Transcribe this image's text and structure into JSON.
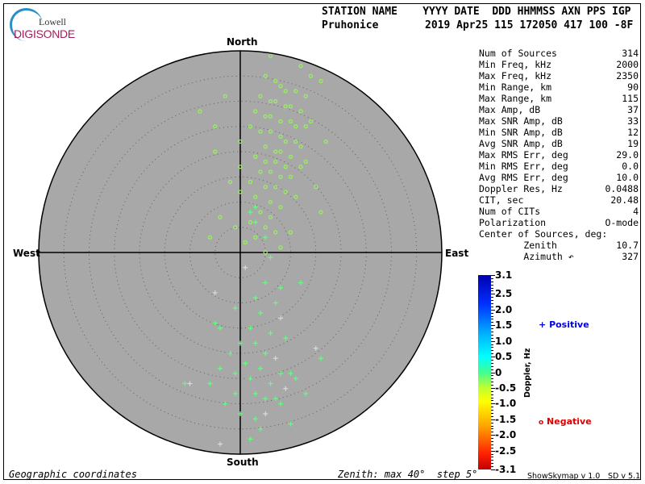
{
  "logo": {
    "line1": "Lowell",
    "line2": "DIGISONDE"
  },
  "header": {
    "labels": "STATION NAME    YYYY DATE  DDD HHMMSS AXN PPS IGP",
    "station": "Pruhonice",
    "values": "2019 Apr25 115 172050 417 100 -8F"
  },
  "directions": {
    "north": "North",
    "south": "South",
    "east": "East",
    "west": "West"
  },
  "stats": [
    {
      "label": "Num of Sources",
      "value": "314"
    },
    {
      "label": "Min Freq, kHz",
      "value": "2000"
    },
    {
      "label": "Max Freq, kHz",
      "value": "2350"
    },
    {
      "label": "Min Range, km",
      "value": "90"
    },
    {
      "label": "Max Range, km",
      "value": "115"
    },
    {
      "label": "Max Amp, dB",
      "value": "37"
    },
    {
      "label": "Max SNR Amp, dB",
      "value": "33"
    },
    {
      "label": "Min SNR Amp, dB",
      "value": "12"
    },
    {
      "label": "Avg SNR Amp, dB",
      "value": "19"
    },
    {
      "label": "Max RMS Err, deg",
      "value": "29.0"
    },
    {
      "label": "Min RMS Err, deg",
      "value": "0.0"
    },
    {
      "label": "Avg RMS Err, deg",
      "value": "10.0"
    },
    {
      "label": "Doppler Res, Hz",
      "value": "0.0488"
    },
    {
      "label": "CIT, sec",
      "value": "20.48"
    },
    {
      "label": "Num of CITs",
      "value": "4"
    },
    {
      "label": "Polarization",
      "value": "O-mode"
    },
    {
      "label": "Center of Sources, deg:",
      "value": ""
    },
    {
      "label": "        Zenith",
      "value": "10.7"
    },
    {
      "label": "        Azimuth ↶",
      "value": "327"
    }
  ],
  "footer": {
    "left": "Geographic coordinates",
    "right": "Zenith: max 40°  step 5°",
    "version1": "ShowSkymap v 1.0",
    "version2": "SD v 5.1"
  },
  "legend": {
    "positive_symbol": "+",
    "positive": "Positive",
    "negative_symbol": "o",
    "negative": "Negative",
    "positive_color": "#0000e0",
    "negative_color": "#e00000"
  },
  "chart_data": {
    "type": "scatter",
    "coordinates": "polar sky map, zenith angle radial, azimuth geographic",
    "zenith_max": 40,
    "zenith_step": 5,
    "colorbar": {
      "label": "Doppler, Hz",
      "range": [
        -3.1,
        3.1
      ],
      "ticks": [
        "3.1",
        "2.5",
        "2.0",
        "1.5",
        "1.0",
        "0.5",
        "0",
        "-0.5",
        "-1.0",
        "-1.5",
        "-2.0",
        "-2.5",
        "-3.1"
      ]
    },
    "point_units": "[east_deg, north_deg, doppler_Hz]",
    "negative_points": [
      [
        6,
        39
      ],
      [
        12,
        37
      ],
      [
        14,
        35
      ],
      [
        16,
        34
      ],
      [
        5,
        35
      ],
      [
        7,
        34
      ],
      [
        8,
        33
      ],
      [
        9,
        32
      ],
      [
        11,
        32
      ],
      [
        13,
        31
      ],
      [
        4,
        31
      ],
      [
        6,
        30
      ],
      [
        7,
        30
      ],
      [
        9,
        29
      ],
      [
        10,
        29
      ],
      [
        12,
        28
      ],
      [
        3,
        28
      ],
      [
        5,
        27
      ],
      [
        6,
        27
      ],
      [
        8,
        26
      ],
      [
        10,
        26
      ],
      [
        11,
        25
      ],
      [
        13,
        25
      ],
      [
        2,
        25
      ],
      [
        4,
        24
      ],
      [
        6,
        24
      ],
      [
        8,
        23
      ],
      [
        9,
        22
      ],
      [
        11,
        22
      ],
      [
        12,
        21
      ],
      [
        5,
        21
      ],
      [
        7,
        20
      ],
      [
        8,
        20
      ],
      [
        10,
        19
      ],
      [
        3,
        19
      ],
      [
        5,
        18
      ],
      [
        7,
        18
      ],
      [
        9,
        17
      ],
      [
        12,
        17
      ],
      [
        4,
        16
      ],
      [
        6,
        16
      ],
      [
        8,
        15
      ],
      [
        10,
        15
      ],
      [
        2,
        14
      ],
      [
        5,
        13
      ],
      [
        7,
        13
      ],
      [
        9,
        12
      ],
      [
        11,
        11
      ],
      [
        3,
        11
      ],
      [
        6,
        10
      ],
      [
        8,
        9
      ],
      [
        4,
        8
      ],
      [
        6,
        7
      ],
      [
        2,
        6
      ],
      [
        5,
        5
      ],
      [
        7,
        4
      ],
      [
        3,
        3
      ],
      [
        1,
        2
      ],
      [
        -3,
        31
      ],
      [
        -5,
        25
      ],
      [
        -8,
        28
      ],
      [
        -5,
        20
      ],
      [
        -2,
        14
      ],
      [
        -4,
        7
      ],
      [
        -6,
        3
      ],
      [
        0,
        22
      ],
      [
        0,
        12
      ],
      [
        0,
        17
      ],
      [
        15,
        13
      ],
      [
        17,
        22
      ],
      [
        14,
        26
      ],
      [
        13,
        18
      ],
      [
        16,
        8
      ],
      [
        10,
        4
      ],
      [
        -1,
        5
      ],
      [
        8,
        1
      ],
      [
        5,
        0
      ]
    ],
    "positive_points": [
      [
        6,
        -1
      ],
      [
        5,
        -6
      ],
      [
        3,
        -9
      ],
      [
        7,
        -10
      ],
      [
        4,
        -12
      ],
      [
        8,
        -13
      ],
      [
        2,
        -15
      ],
      [
        6,
        -16
      ],
      [
        9,
        -17
      ],
      [
        3,
        -18
      ],
      [
        5,
        -20
      ],
      [
        7,
        -21
      ],
      [
        1,
        -22
      ],
      [
        4,
        -23
      ],
      [
        8,
        -24
      ],
      [
        2,
        -25
      ],
      [
        6,
        -26
      ],
      [
        9,
        -27
      ],
      [
        3,
        -28
      ],
      [
        5,
        -29
      ],
      [
        7,
        -29
      ],
      [
        -2,
        -20
      ],
      [
        -4,
        -15
      ],
      [
        -5,
        -8
      ],
      [
        -1,
        -11
      ],
      [
        0,
        -18
      ],
      [
        -1,
        -24
      ],
      [
        -4,
        -23
      ],
      [
        -6,
        -26
      ],
      [
        -10,
        -26
      ],
      [
        -3,
        -30
      ],
      [
        -1,
        -28
      ],
      [
        3,
        -33
      ],
      [
        4,
        -35
      ],
      [
        2,
        -37
      ],
      [
        1,
        -3
      ],
      [
        3,
        6
      ],
      [
        5,
        3
      ],
      [
        2,
        8
      ],
      [
        10,
        -24
      ],
      [
        13,
        -28
      ],
      [
        15,
        -19
      ],
      [
        16,
        -21
      ],
      [
        12,
        -6
      ],
      [
        8,
        -7
      ],
      [
        -5,
        -14
      ],
      [
        0,
        -32
      ],
      [
        -4,
        -38
      ],
      [
        10,
        -34
      ],
      [
        3,
        9
      ],
      [
        8,
        -30
      ],
      [
        -11,
        -26
      ],
      [
        11,
        -25
      ],
      [
        5,
        -32
      ]
    ]
  }
}
